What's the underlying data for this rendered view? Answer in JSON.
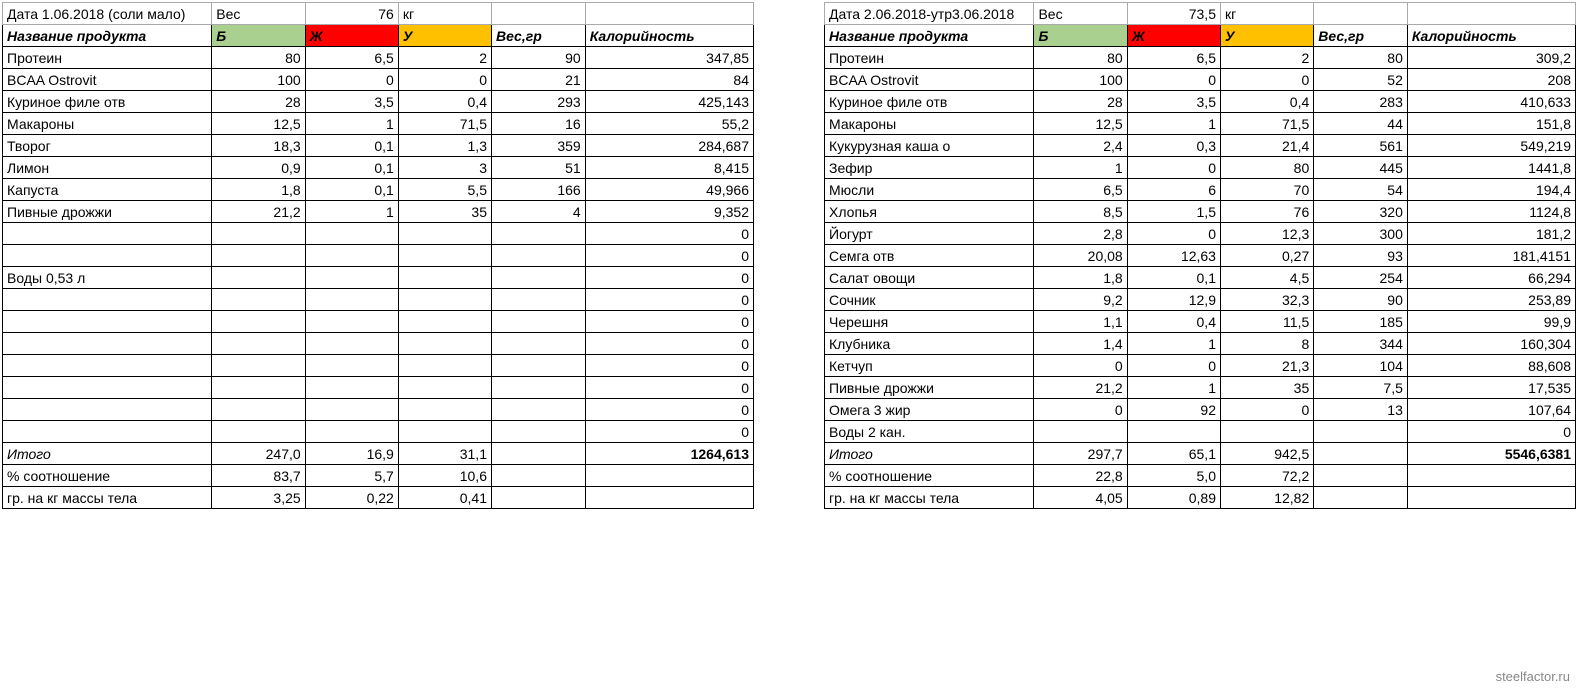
{
  "colors": {
    "green": "#a9d08e",
    "red": "#ff0000",
    "orange": "#ffc000",
    "border": "#000000",
    "background": "#ffffff",
    "watermark": "#888888"
  },
  "labels": {
    "date_prefix": "Дата",
    "weight_word": "Вес",
    "kg": "кг",
    "product": "Название продукта",
    "b": "Б",
    "j": "Ж",
    "u": "У",
    "weight_g": "Вес,гр",
    "kcal": "Калорийность",
    "total": "Итого",
    "percent": "% соотношение",
    "per_kg": "гр. на кг массы тела"
  },
  "left": {
    "date": "1.06.2018 (соли мало)",
    "weight": "76",
    "rows": [
      {
        "name": "Протеин",
        "b": "80",
        "j": "6,5",
        "u": "2",
        "w": "90",
        "k": "347,85"
      },
      {
        "name": "BCAA Ostrovit",
        "b": "100",
        "j": "0",
        "u": "0",
        "w": "21",
        "k": "84"
      },
      {
        "name": "Куриное филе отв",
        "b": "28",
        "j": "3,5",
        "u": "0,4",
        "w": "293",
        "k": "425,143"
      },
      {
        "name": "Макароны",
        "b": "12,5",
        "j": "1",
        "u": "71,5",
        "w": "16",
        "k": "55,2"
      },
      {
        "name": "Творог",
        "b": "18,3",
        "j": "0,1",
        "u": "1,3",
        "w": "359",
        "k": "284,687"
      },
      {
        "name": "Лимон",
        "b": "0,9",
        "j": "0,1",
        "u": "3",
        "w": "51",
        "k": "8,415"
      },
      {
        "name": "Капуста",
        "b": "1,8",
        "j": "0,1",
        "u": "5,5",
        "w": "166",
        "k": "49,966"
      },
      {
        "name": "Пивные дрожжи",
        "b": "21,2",
        "j": "1",
        "u": "35",
        "w": "4",
        "k": "9,352"
      },
      {
        "name": "",
        "b": "",
        "j": "",
        "u": "",
        "w": "",
        "k": "0"
      },
      {
        "name": "",
        "b": "",
        "j": "",
        "u": "",
        "w": "",
        "k": "0"
      },
      {
        "name": "Воды 0,53 л",
        "b": "",
        "j": "",
        "u": "",
        "w": "",
        "k": "0"
      },
      {
        "name": "",
        "b": "",
        "j": "",
        "u": "",
        "w": "",
        "k": "0"
      },
      {
        "name": "",
        "b": "",
        "j": "",
        "u": "",
        "w": "",
        "k": "0"
      },
      {
        "name": "",
        "b": "",
        "j": "",
        "u": "",
        "w": "",
        "k": "0"
      },
      {
        "name": "",
        "b": "",
        "j": "",
        "u": "",
        "w": "",
        "k": "0"
      },
      {
        "name": "",
        "b": "",
        "j": "",
        "u": "",
        "w": "",
        "k": "0"
      },
      {
        "name": "",
        "b": "",
        "j": "",
        "u": "",
        "w": "",
        "k": "0"
      },
      {
        "name": "",
        "b": "",
        "j": "",
        "u": "",
        "w": "",
        "k": "0"
      }
    ],
    "total": {
      "b": "247,0",
      "j": "16,9",
      "u": "31,1",
      "w": "",
      "k": "1264,613"
    },
    "percent": {
      "b": "83,7",
      "j": "5,7",
      "u": "10,6"
    },
    "per_kg": {
      "b": "3,25",
      "j": "0,22",
      "u": "0,41"
    }
  },
  "right": {
    "date": "2.06.2018-утр3.06.2018",
    "weight": "73,5",
    "rows": [
      {
        "name": "Протеин",
        "b": "80",
        "j": "6,5",
        "u": "2",
        "w": "80",
        "k": "309,2"
      },
      {
        "name": "BCAA Ostrovit",
        "b": "100",
        "j": "0",
        "u": "0",
        "w": "52",
        "k": "208"
      },
      {
        "name": "Куриное филе отв",
        "b": "28",
        "j": "3,5",
        "u": "0,4",
        "w": "283",
        "k": "410,633"
      },
      {
        "name": "Макароны",
        "b": "12,5",
        "j": "1",
        "u": "71,5",
        "w": "44",
        "k": "151,8"
      },
      {
        "name": "Кукурузная каша о",
        "b": "2,4",
        "j": "0,3",
        "u": "21,4",
        "w": "561",
        "k": "549,219"
      },
      {
        "name": "Зефир",
        "b": "1",
        "j": "0",
        "u": "80",
        "w": "445",
        "k": "1441,8"
      },
      {
        "name": "Мюсли",
        "b": "6,5",
        "j": "6",
        "u": "70",
        "w": "54",
        "k": "194,4"
      },
      {
        "name": "Хлопья",
        "b": "8,5",
        "j": "1,5",
        "u": "76",
        "w": "320",
        "k": "1124,8"
      },
      {
        "name": "Йогурт",
        "b": "2,8",
        "j": "0",
        "u": "12,3",
        "w": "300",
        "k": "181,2"
      },
      {
        "name": "Семга отв",
        "b": "20,08",
        "j": "12,63",
        "u": "0,27",
        "w": "93",
        "k": "181,4151"
      },
      {
        "name": "Салат овощи",
        "b": "1,8",
        "j": "0,1",
        "u": "4,5",
        "w": "254",
        "k": "66,294"
      },
      {
        "name": "Сочник",
        "b": "9,2",
        "j": "12,9",
        "u": "32,3",
        "w": "90",
        "k": "253,89"
      },
      {
        "name": "Черешня",
        "b": "1,1",
        "j": "0,4",
        "u": "11,5",
        "w": "185",
        "k": "99,9"
      },
      {
        "name": "Клубника",
        "b": "1,4",
        "j": "1",
        "u": "8",
        "w": "344",
        "k": "160,304"
      },
      {
        "name": "Кетчуп",
        "b": "0",
        "j": "0",
        "u": "21,3",
        "w": "104",
        "k": "88,608"
      },
      {
        "name": "Пивные дрожжи",
        "b": "21,2",
        "j": "1",
        "u": "35",
        "w": "7,5",
        "k": "17,535"
      },
      {
        "name": "Омега 3 жир",
        "b": "0",
        "j": "92",
        "u": "0",
        "w": "13",
        "k": "107,64"
      },
      {
        "name": "Воды 2 кан.",
        "b": "",
        "j": "",
        "u": "",
        "w": "",
        "k": "0"
      }
    ],
    "total": {
      "b": "297,7",
      "j": "65,1",
      "u": "942,5",
      "w": "",
      "k": "5546,6381"
    },
    "percent": {
      "b": "22,8",
      "j": "5,0",
      "u": "72,2"
    },
    "per_kg": {
      "b": "4,05",
      "j": "0,89",
      "u": "12,82"
    }
  },
  "watermark": "steelfactor.ru"
}
